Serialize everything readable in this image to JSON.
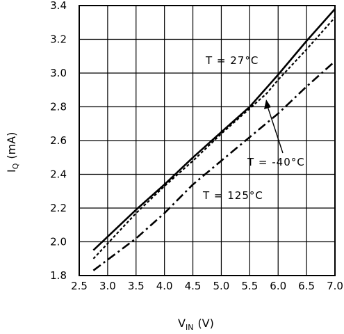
{
  "chart_data": {
    "type": "line",
    "xlabel": {
      "main": "V",
      "sub": "IN",
      "unit": "(V)"
    },
    "ylabel": {
      "main": "I",
      "sub": "Q",
      "unit": "(mA)"
    },
    "xlim": [
      2.5,
      7.0
    ],
    "ylim": [
      1.8,
      3.4
    ],
    "x_ticks": [
      "2.5",
      "3.0",
      "3.5",
      "4.0",
      "4.5",
      "5.0",
      "5.5",
      "6.0",
      "6.5",
      "7.0"
    ],
    "y_ticks": [
      "1.8",
      "2.0",
      "2.2",
      "2.4",
      "2.6",
      "2.8",
      "3.0",
      "3.2",
      "3.4"
    ],
    "grid": true,
    "series": [
      {
        "name": "T = 27°C",
        "style": "solid",
        "x": [
          2.75,
          3.5,
          4.0,
          4.5,
          5.0,
          5.5,
          6.0,
          6.5,
          7.0
        ],
        "y": [
          1.95,
          2.19,
          2.34,
          2.5,
          2.65,
          2.8,
          2.99,
          3.19,
          3.38
        ]
      },
      {
        "name": "T = -40°C",
        "style": "dotted",
        "x": [
          2.75,
          3.5,
          4.0,
          4.5,
          5.0,
          5.5,
          5.8,
          6.0,
          6.5,
          7.0
        ],
        "y": [
          1.9,
          2.17,
          2.33,
          2.48,
          2.64,
          2.79,
          2.88,
          2.96,
          3.14,
          3.33
        ]
      },
      {
        "name": "T = 125°C",
        "style": "dash-dot",
        "x": [
          2.75,
          3.5,
          4.0,
          4.5,
          5.0,
          5.5,
          6.0,
          6.5,
          7.0
        ],
        "y": [
          1.83,
          2.02,
          2.17,
          2.34,
          2.48,
          2.62,
          2.76,
          2.92,
          3.07
        ]
      }
    ],
    "annotations": [
      "T = 27°C",
      "T = -40°C",
      "T = 125°C"
    ]
  }
}
